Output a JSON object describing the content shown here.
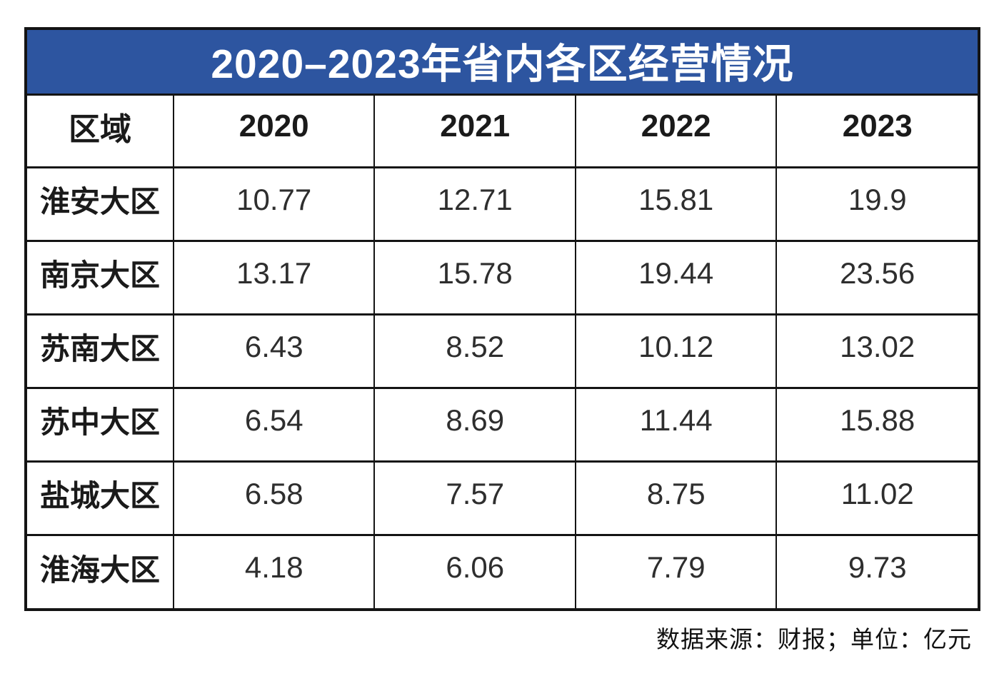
{
  "table": {
    "title": "2020–2023年省内各区经营情况",
    "columns": [
      "区域",
      "2020",
      "2021",
      "2022",
      "2023"
    ],
    "rows": [
      {
        "region": "淮安大区",
        "values": [
          "10.77",
          "12.71",
          "15.81",
          "19.9"
        ]
      },
      {
        "region": "南京大区",
        "values": [
          "13.17",
          "15.78",
          "19.44",
          "23.56"
        ]
      },
      {
        "region": "苏南大区",
        "values": [
          "6.43",
          "8.52",
          "10.12",
          "13.02"
        ]
      },
      {
        "region": "苏中大区",
        "values": [
          "6.54",
          "8.69",
          "11.44",
          "15.88"
        ]
      },
      {
        "region": "盐城大区",
        "values": [
          "6.58",
          "7.57",
          "8.75",
          "11.02"
        ]
      },
      {
        "region": "淮海大区",
        "values": [
          "4.18",
          "6.06",
          "7.79",
          "9.73"
        ]
      }
    ],
    "footnote": "数据来源：财报；单位：亿元"
  },
  "colors": {
    "title_background": "#2D55A0",
    "title_text": "#FFFFFF",
    "border": "#141414",
    "cell_text": "#2E2E2E"
  },
  "chart_data": {
    "type": "table",
    "title": "2020–2023年省内各区经营情况",
    "categories": [
      "2020",
      "2021",
      "2022",
      "2023"
    ],
    "series": [
      {
        "name": "淮安大区",
        "values": [
          10.77,
          12.71,
          15.81,
          19.9
        ]
      },
      {
        "name": "南京大区",
        "values": [
          13.17,
          15.78,
          19.44,
          23.56
        ]
      },
      {
        "name": "苏南大区",
        "values": [
          6.43,
          8.52,
          10.12,
          13.02
        ]
      },
      {
        "name": "苏中大区",
        "values": [
          6.54,
          8.69,
          11.44,
          15.88
        ]
      },
      {
        "name": "盐城大区",
        "values": [
          6.58,
          7.57,
          8.75,
          11.02
        ]
      },
      {
        "name": "淮海大区",
        "values": [
          4.18,
          6.06,
          7.79,
          9.73
        ]
      }
    ],
    "row_header_label": "区域",
    "unit": "亿元",
    "source": "财报"
  }
}
